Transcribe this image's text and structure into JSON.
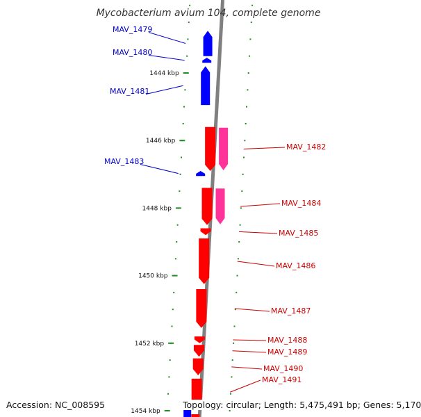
{
  "title": "Mycobacterium avium 104, complete genome",
  "accession_text": "Accession: NC_008595",
  "summary_text": "Topology: circular; Length: 5,475,491 bp; Genes: 5,170",
  "colors": {
    "backbone": "#808080",
    "forward_gene": "#0000ff",
    "reverse_gene": "#ff0000",
    "reverse_companion": "#ff3399",
    "tick": "#228b22",
    "tick_text": "#111111",
    "label_forward": "#0000cc",
    "label_reverse": "#cc0000"
  },
  "kbp_ticks": [
    {
      "kbp": 1444,
      "label": "1444 kbp"
    },
    {
      "kbp": 1446,
      "label": "1446 kbp"
    },
    {
      "kbp": 1448,
      "label": "1448 kbp"
    },
    {
      "kbp": 1450,
      "label": "1450 kbp"
    },
    {
      "kbp": 1452,
      "label": "1452 kbp"
    },
    {
      "kbp": 1454,
      "label": "1454 kbp"
    }
  ],
  "genes": [
    {
      "name": "MAV_1479",
      "strand": "+",
      "start_kbp": 1442.75,
      "end_kbp": 1443.5
    },
    {
      "name": "MAV_1480",
      "strand": "+",
      "start_kbp": 1443.55,
      "end_kbp": 1443.7
    },
    {
      "name": "MAV_1481",
      "strand": "+",
      "start_kbp": 1443.8,
      "end_kbp": 1444.95
    },
    {
      "name": "MAV_1482",
      "strand": "-",
      "start_kbp": 1445.6,
      "end_kbp": 1446.9
    },
    {
      "name": "MAV_1483",
      "strand": "+",
      "start_kbp": 1446.9,
      "end_kbp": 1447.05
    },
    {
      "name": "MAV_1484",
      "strand": "-",
      "start_kbp": 1447.4,
      "end_kbp": 1448.5
    },
    {
      "name": "MAV_1485",
      "strand": "-",
      "start_kbp": 1448.6,
      "end_kbp": 1448.8
    },
    {
      "name": "MAV_1486",
      "strand": "-",
      "start_kbp": 1448.9,
      "end_kbp": 1450.25
    },
    {
      "name": "MAV_1487",
      "strand": "-",
      "start_kbp": 1450.4,
      "end_kbp": 1451.55
    },
    {
      "name": "MAV_1488",
      "strand": "-",
      "start_kbp": 1451.8,
      "end_kbp": 1452.0
    },
    {
      "name": "MAV_1489",
      "strand": "-",
      "start_kbp": 1452.05,
      "end_kbp": 1452.4
    },
    {
      "name": "MAV_1490",
      "strand": "-",
      "start_kbp": 1452.45,
      "end_kbp": 1452.95
    },
    {
      "name": "MAV_1491",
      "strand": "-",
      "start_kbp": 1453.05,
      "end_kbp": 1453.85
    }
  ]
}
